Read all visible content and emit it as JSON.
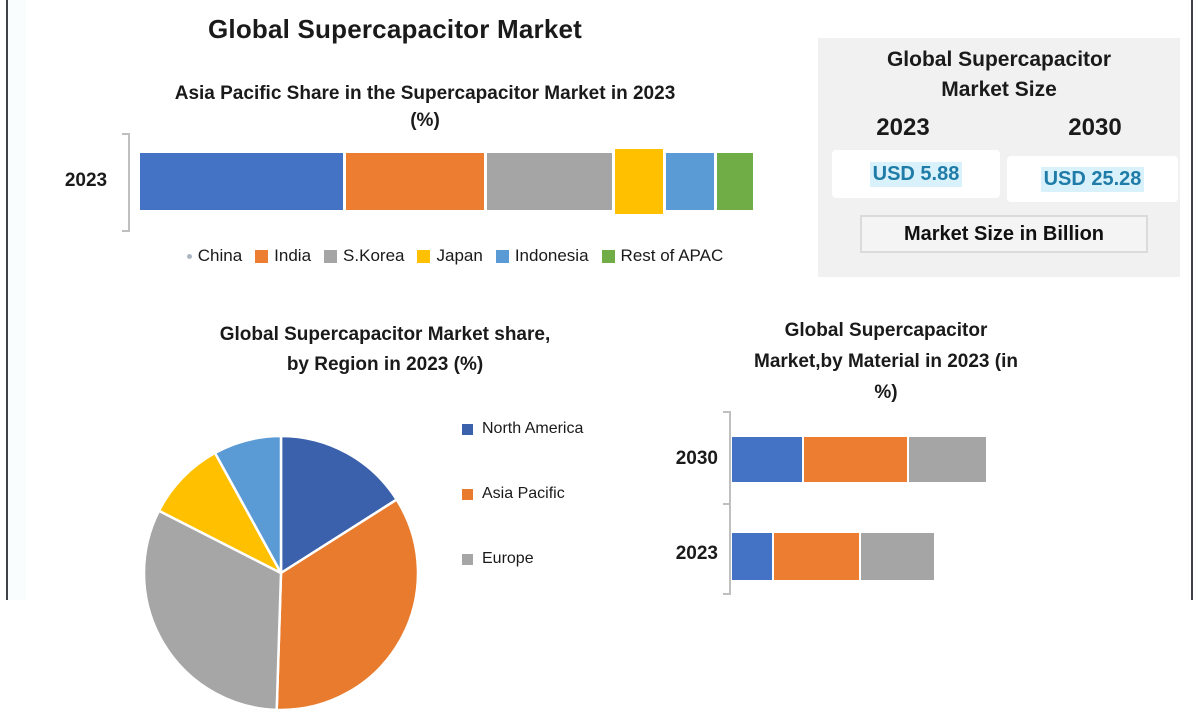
{
  "page": {
    "main_title": "Global Supercapacitor Market",
    "frame_color": "#3f4347"
  },
  "chart_data": [
    {
      "id": "apac_share_bar",
      "type": "bar",
      "orientation": "horizontal-stacked",
      "title_line1": "Asia Pacific Share in the Supercapacitor Market in 2023",
      "title_line2": "(%)",
      "categories": [
        "2023"
      ],
      "unit": "%",
      "xlim": [
        0,
        100
      ],
      "series": [
        {
          "name": "China",
          "values": [
            34
          ],
          "color": "#4472C4"
        },
        {
          "name": "India",
          "values": [
            23
          ],
          "color": "#ED7D31"
        },
        {
          "name": "S.Korea",
          "values": [
            21
          ],
          "color": "#A5A5A5"
        },
        {
          "name": "Japan",
          "values": [
            8
          ],
          "color": "#FFC000"
        },
        {
          "name": "Indonesia",
          "values": [
            8
          ],
          "color": "#5B9BD5"
        },
        {
          "name": "Rest of APAC",
          "values": [
            6
          ],
          "color": "#70AD47"
        }
      ],
      "legend_position": "bottom"
    },
    {
      "id": "region_pie",
      "type": "pie",
      "title_line1": "Global Supercapacitor Market share,",
      "title_line2": "by Region in 2023  (%)",
      "slices": [
        {
          "label": "North America",
          "value": 16,
          "color": "#3B61AC"
        },
        {
          "label": "Asia Pacific",
          "value": 34.5,
          "color": "#E87B2E"
        },
        {
          "label": "Europe",
          "value": 32,
          "color": "#A6A6A6"
        },
        {
          "label": "",
          "value": 9.5,
          "color": "#FFC000"
        },
        {
          "label": "",
          "value": 8,
          "color": "#5B9BD5"
        }
      ],
      "legend_visible": [
        "North America",
        "Asia Pacific",
        "Europe"
      ],
      "legend_position": "right"
    },
    {
      "id": "material_bar",
      "type": "bar",
      "orientation": "horizontal-stacked",
      "title_line1": "Global Supercapacitor",
      "title_line2": "Market,by Material in 2023 (in",
      "title_line3": "%)",
      "categories": [
        "2030",
        "2023"
      ],
      "series": [
        {
          "name": "",
          "color": "#4472C4",
          "values": [
            28,
            16
          ]
        },
        {
          "name": "",
          "color": "#ED7D31",
          "values": [
            41,
            34
          ]
        },
        {
          "name": "",
          "color": "#A5A5A5",
          "values": [
            31,
            29
          ]
        }
      ]
    }
  ],
  "market_size_panel": {
    "title_line1": "Global Supercapacitor",
    "title_line2": "Market Size",
    "year_left": "2023",
    "year_right": "2030",
    "value_left": "USD 5.88",
    "value_right": "USD 25.28",
    "footer": "Market Size in Billion",
    "value_color": "#1F7CA8",
    "panel_bg": "#f1f1f1"
  }
}
